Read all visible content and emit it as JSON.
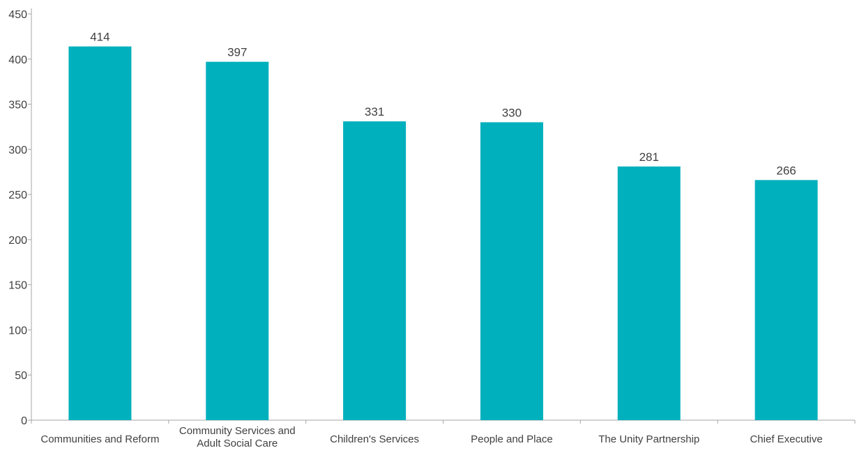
{
  "chart_data": {
    "type": "bar",
    "categories": [
      "Communities and Reform",
      "Community Services and\nAdult Social Care",
      "Children's Services",
      "People and Place",
      "The Unity Partnership",
      "Chief Executive"
    ],
    "values": [
      414,
      397,
      331,
      330,
      281,
      266
    ],
    "title": "",
    "xlabel": "",
    "ylabel": "",
    "ylim": [
      0,
      450
    ],
    "yticks": [
      0,
      50,
      100,
      150,
      200,
      250,
      300,
      350,
      400,
      450
    ],
    "grid": false,
    "legend": "none",
    "bar_color": "#00B0BD",
    "axis_color": "#A6A6A6",
    "text_color": "#404040"
  }
}
